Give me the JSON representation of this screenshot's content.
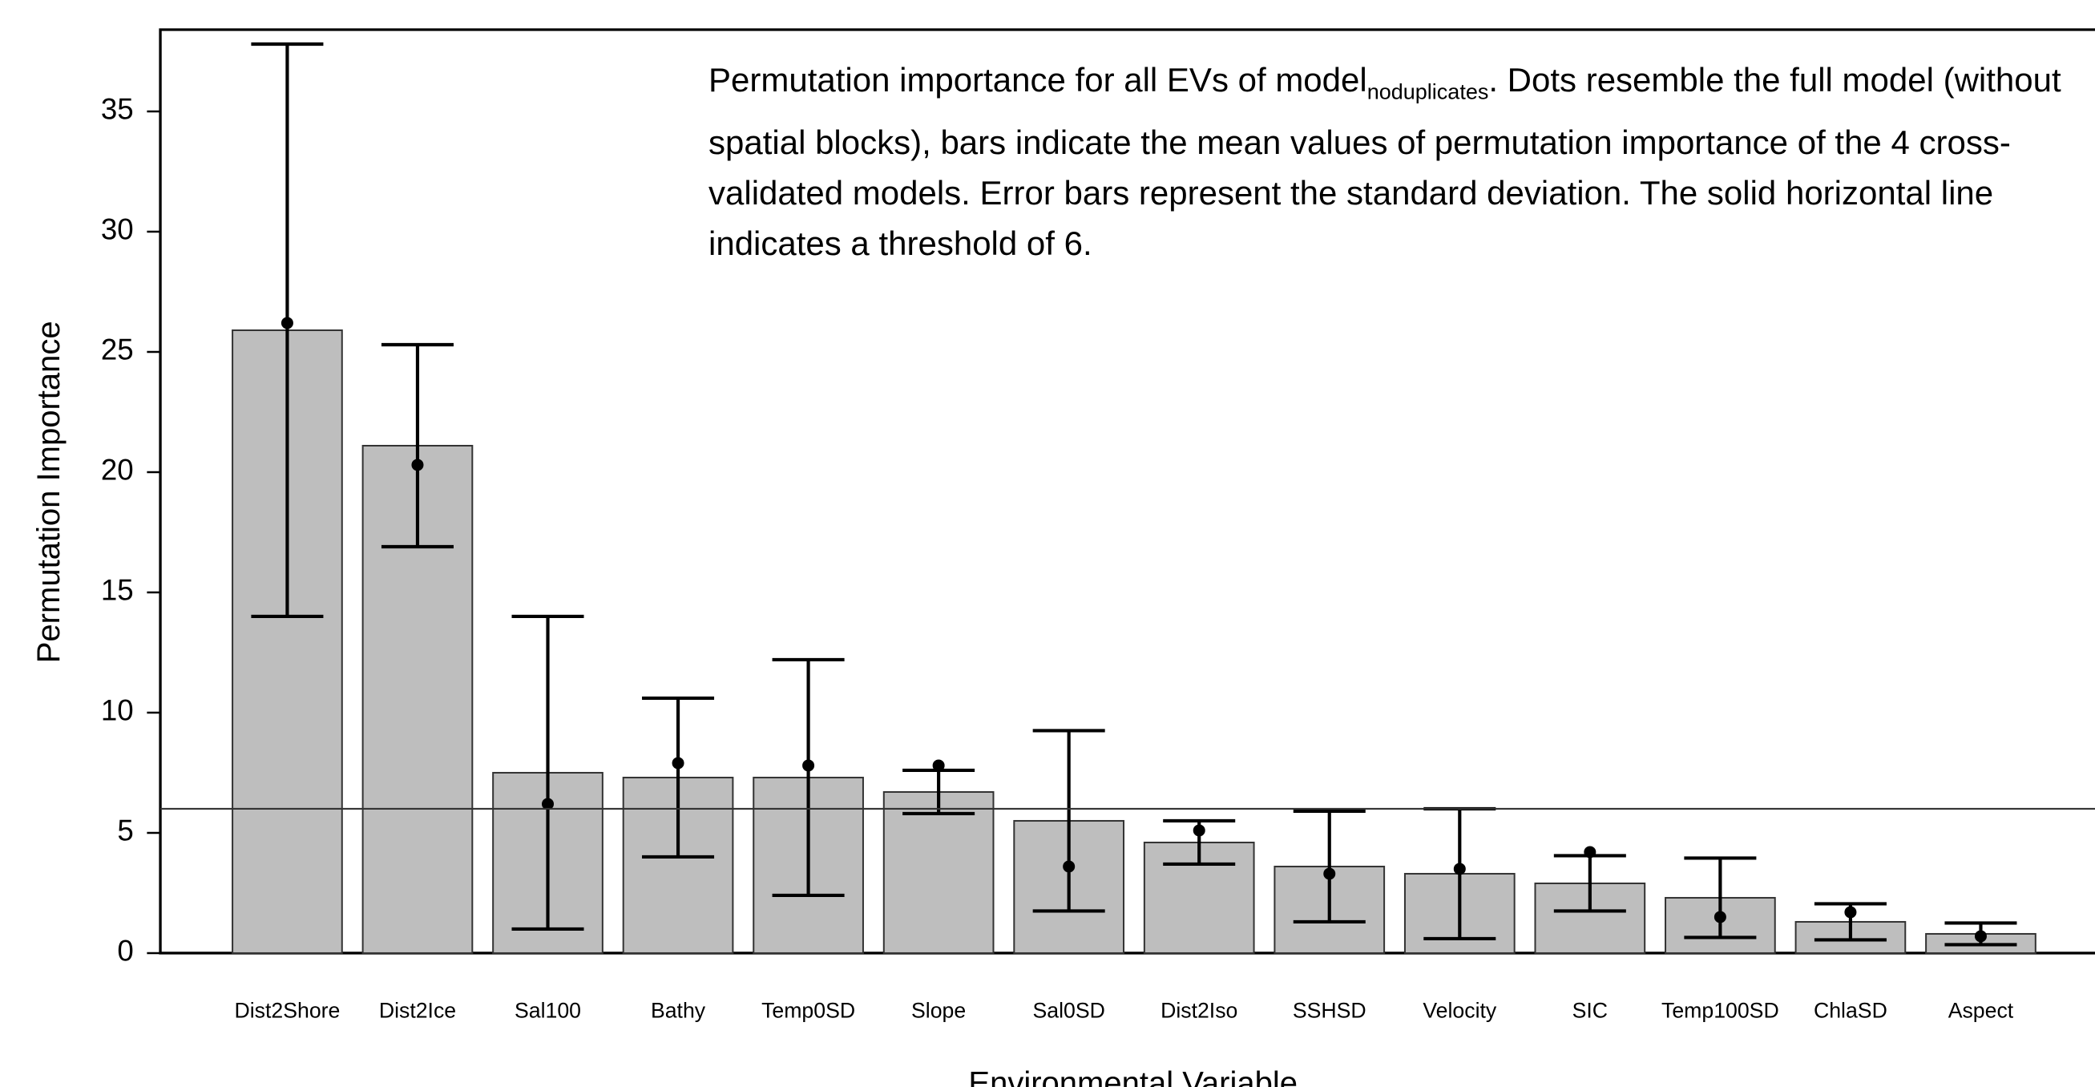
{
  "chart_data": {
    "type": "bar",
    "caption": {
      "before": "Permutation importance for all EVs of model",
      "subscript": "noduplicates",
      "after": ". Dots resemble the full model (without spatial blocks), bars indicate the mean values of permutation importance of the 4 cross-validated models. Error bars represent the standard deviation. The solid horizontal line indicates a threshold of 6."
    },
    "xlabel": "Environmental Variable",
    "ylabel": "Permutation Importance",
    "categories": [
      "Dist2Shore",
      "Dist2Ice",
      "Sal100",
      "Bathy",
      "Temp0SD",
      "Slope",
      "Sal0SD",
      "Dist2Iso",
      "SSHSD",
      "Velocity",
      "SIC",
      "Temp100SD",
      "ChlaSD",
      "Aspect"
    ],
    "values": [
      25.9,
      21.1,
      7.5,
      7.3,
      7.3,
      6.7,
      5.5,
      4.6,
      3.6,
      3.3,
      2.9,
      2.3,
      1.3,
      0.8
    ],
    "errors": [
      11.9,
      4.2,
      6.5,
      3.3,
      4.9,
      0.9,
      3.75,
      0.9,
      2.3,
      2.7,
      1.15,
      1.65,
      0.75,
      0.45
    ],
    "points": [
      26.2,
      20.3,
      6.2,
      7.9,
      7.8,
      7.8,
      3.6,
      5.1,
      3.3,
      3.5,
      4.2,
      1.5,
      1.7,
      0.7
    ],
    "color": "#bebebe",
    "threshold": 6,
    "ylim": [
      0,
      38.4
    ],
    "yticks": [
      0,
      5,
      10,
      15,
      20,
      25,
      30,
      35
    ]
  }
}
